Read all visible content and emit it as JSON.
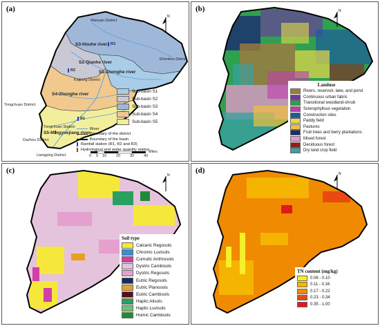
{
  "panels": {
    "a": {
      "label": "(a)",
      "north_label": "N",
      "places": {
        "wanyan": "Wanyan District",
        "ehenkou": "Ehenkou District",
        "kaijiang": "Kaijiang District",
        "tongchuan": "Tongchuan District",
        "tongchuan_station": "Tongchuan Station",
        "dazhou": "Dazhou District",
        "liangping": "Liangping District"
      },
      "rivers": {
        "s3": "S3-Houhe river",
        "s2": "S2-Qianhe river",
        "s1": "S1-Zhonghe river",
        "s4": "S4-Zhonghe river",
        "s5": "S5-Mingyuejiang river"
      },
      "stations": {
        "r1": "R1",
        "r2": "R2",
        "r3": "R3"
      },
      "legend_items": [
        {
          "label": "Sub-basin S1",
          "color": "#a9cde6"
        },
        {
          "label": "Sub-basin S2",
          "color": "#c9c9d6"
        },
        {
          "label": "Sub-basin S3",
          "color": "#9fb7d9"
        },
        {
          "label": "Sub-basin S4",
          "color": "#f1c98f"
        },
        {
          "label": "Sub-basin S5",
          "color": "#f3ee9c"
        }
      ],
      "boundary_items": [
        {
          "label": "River",
          "color": "#5aa0e0"
        },
        {
          "label": "Boundary of the district",
          "color": "#444444"
        },
        {
          "label": "Boundary of the basin",
          "color": "#000000"
        }
      ],
      "station_items": [
        {
          "label": "Rainfall station (R1, R2 and R3)",
          "color": "#1f3fbf"
        },
        {
          "label": "Hydrological and water quantity station",
          "color": "#d42020"
        }
      ],
      "scale": {
        "ticks": [
          "0",
          "5",
          "10",
          "20",
          "30",
          "40"
        ],
        "unit": "Miles"
      }
    },
    "b": {
      "label": "(b)",
      "north_label": "N",
      "legend_title": "Landuse",
      "legend_items": [
        {
          "label": "Rivers, reservoir, lake, and pond",
          "color": "#a07a3e"
        },
        {
          "label": "Continuous urban fabric",
          "color": "#6a3f9a"
        },
        {
          "label": "Transitional woodland-shrub",
          "color": "#2fa050"
        },
        {
          "label": "Sclerophyllous vegetation",
          "color": "#c03cb0"
        },
        {
          "label": "Construction sites",
          "color": "#1e5a9c"
        },
        {
          "label": "Paddy field",
          "color": "#e8d84a"
        },
        {
          "label": "Pastures",
          "color": "#f0c040"
        },
        {
          "label": "Fruit trees and berry plantations",
          "color": "#1c2a70"
        },
        {
          "label": "Mixed forest",
          "color": "#e09ac8"
        },
        {
          "label": "Deciduous forest",
          "color": "#8a2020"
        },
        {
          "label": "Dry land crop field",
          "color": "#3aa0a0"
        }
      ]
    },
    "c": {
      "label": "(c)",
      "north_label": "N",
      "legend_title": "Soil type",
      "legend_items": [
        {
          "label": "Calcaric Regosols",
          "color": "#f5e83a"
        },
        {
          "label": "Chromic Luvisols",
          "color": "#3a8fd0"
        },
        {
          "label": "Cumulic Anthrosols",
          "color": "#d23fa8"
        },
        {
          "label": "Dystric Cambisols",
          "color": "#e6c3dc"
        },
        {
          "label": "Dystric Regosols",
          "color": "#e6a0d0"
        },
        {
          "label": "Eutric Regosols",
          "color": "#1a2a5a"
        },
        {
          "label": "Eutric Planosols",
          "color": "#e8a020"
        },
        {
          "label": "Eutric Cambisols",
          "color": "#5a1010"
        },
        {
          "label": "Haplic Alisols",
          "color": "#2aa060"
        },
        {
          "label": "Haplic Luvisols",
          "color": "#70c070"
        },
        {
          "label": "Humic Cambisols",
          "color": "#1e8a3a"
        }
      ]
    },
    "d": {
      "label": "(d)",
      "north_label": "N",
      "legend_title": "TN content (mg/kg)",
      "legend_items": [
        {
          "label": "0.06 - 0.10",
          "color": "#f7ef2a"
        },
        {
          "label": "0.11 - 0.16",
          "color": "#f5b400"
        },
        {
          "label": "0.17 - 0.22",
          "color": "#f08a00"
        },
        {
          "label": "0.23 - 0.34",
          "color": "#e84a10"
        },
        {
          "label": "0.35 - 1.00",
          "color": "#e01a1a"
        }
      ]
    }
  }
}
